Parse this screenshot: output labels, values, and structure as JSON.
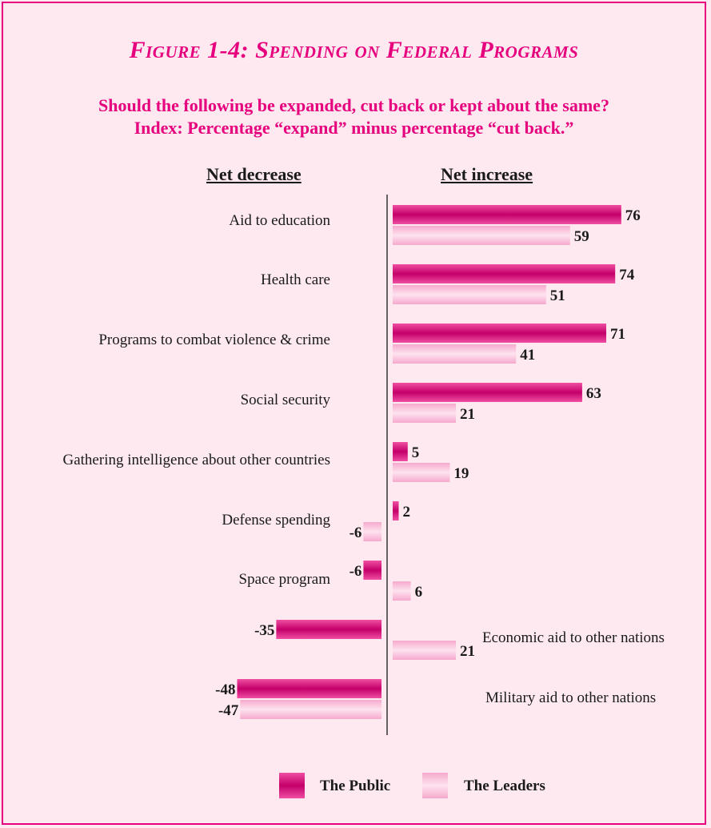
{
  "figure": {
    "title": "Figure 1-4: Spending on Federal Programs",
    "subtitle_line1": "Should the following be expanded, cut back or kept about the same?",
    "subtitle_line2": "Index: Percentage “expand” minus percentage “cut back.”",
    "header_decrease": "Net decrease",
    "header_increase": "Net increase"
  },
  "colors": {
    "public": "#e6198a",
    "public_dark": "#c4006a",
    "leaders": "#f7b3d2",
    "leaders_light": "#fde3ef",
    "axis": "#333333"
  },
  "chart_data": {
    "type": "bar",
    "orientation": "horizontal",
    "title": "Figure 1-4: Spending on Federal Programs",
    "categories": [
      "Aid to education",
      "Health care",
      "Programs to combat violence & crime",
      "Social security",
      "Gathering intelligence about other countries",
      "Defense spending",
      "Space program",
      "Economic aid to other nations",
      "Military aid to other nations"
    ],
    "series": [
      {
        "name": "The Public",
        "values": [
          76,
          74,
          71,
          63,
          5,
          2,
          -6,
          -35,
          -48
        ]
      },
      {
        "name": "The Leaders",
        "values": [
          59,
          51,
          41,
          21,
          19,
          -6,
          6,
          21,
          -47
        ]
      }
    ],
    "legend_position": "bottom"
  }
}
